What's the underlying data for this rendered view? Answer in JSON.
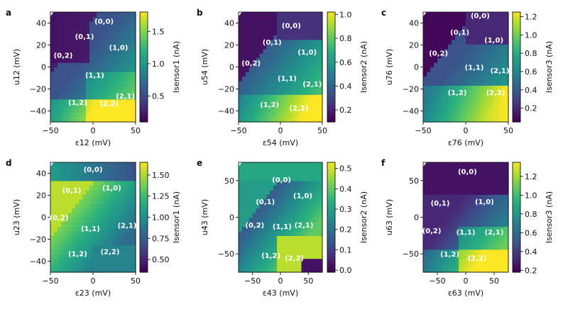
{
  "colors": {
    "low": "#3b1f8f",
    "mid_low": "#2c5fb5",
    "mid": "#1f9a8a",
    "mid_high": "#5ec962",
    "high": "#f0f01a",
    "axis": "#111111",
    "background": "#ffffff"
  },
  "chart_data": [
    {
      "panel": "a",
      "type": "heatmap",
      "xlabel": "ε12 (mV)",
      "ylabel": "u12 (mV)",
      "xlim": [
        -50,
        50
      ],
      "ylim": [
        -50,
        50
      ],
      "xticks": [
        -50,
        0,
        50
      ],
      "yticks": [
        -40,
        -20,
        0,
        20,
        40
      ],
      "colorbar": {
        "label": "Isensor1 (nA)",
        "range": [
          0.1,
          1.8
        ],
        "ticks": [
          0.5,
          1.0,
          1.5
        ],
        "tick_labels": [
          "0.5",
          "1.0",
          "1.5"
        ]
      },
      "regions": [
        {
          "label": "(0,0)",
          "x": 13,
          "y": 42
        },
        {
          "label": "(0,1)",
          "x": -10,
          "y": 28
        },
        {
          "label": "(1,0)",
          "x": 30,
          "y": 18
        },
        {
          "label": "(0,2)",
          "x": -35,
          "y": 11
        },
        {
          "label": "(1,1)",
          "x": 2,
          "y": -7
        },
        {
          "label": "(2,1)",
          "x": 38,
          "y": -26
        },
        {
          "label": "(1,2)",
          "x": -18,
          "y": -32
        },
        {
          "label": "(2,2)",
          "x": 19,
          "y": -33
        }
      ]
    },
    {
      "panel": "b",
      "type": "heatmap",
      "xlabel": "ε54 (mV)",
      "ylabel": "u54 (mV)",
      "xlim": [
        -50,
        50
      ],
      "ylim": [
        -50,
        50
      ],
      "xticks": [
        -50,
        0,
        50
      ],
      "yticks": [
        -40,
        -20,
        0,
        20,
        40
      ],
      "colorbar": {
        "label": "Isensor2 (nA)",
        "range": [
          0.1,
          1.02
        ],
        "ticks": [
          0.2,
          0.4,
          0.6,
          0.8,
          1.0
        ],
        "tick_labels": [
          "0.2",
          "0.4",
          "0.6",
          "0.8",
          "1.0"
        ]
      },
      "regions": [
        {
          "label": "(0,0)",
          "x": 13,
          "y": 38
        },
        {
          "label": "(0,1)",
          "x": -10,
          "y": 23
        },
        {
          "label": "(1,0)",
          "x": 32,
          "y": 14
        },
        {
          "label": "(0,2)",
          "x": -35,
          "y": 4
        },
        {
          "label": "(1,1)",
          "x": 8,
          "y": -10
        },
        {
          "label": "(2,1)",
          "x": 38,
          "y": -15
        },
        {
          "label": "(1,2)",
          "x": -13,
          "y": -34
        },
        {
          "label": "(2,2)",
          "x": 22,
          "y": -37
        }
      ]
    },
    {
      "panel": "c",
      "type": "heatmap",
      "xlabel": "ε76 (mV)",
      "ylabel": "u76 (mV)",
      "xlim": [
        -50,
        50
      ],
      "ylim": [
        -50,
        50
      ],
      "xticks": [
        -50,
        0,
        50
      ],
      "yticks": [
        -40,
        -20,
        0,
        20,
        40
      ],
      "colorbar": {
        "label": "Isensor3 (nA)",
        "range": [
          0.05,
          1.25
        ],
        "ticks": [
          0.2,
          0.4,
          0.6,
          0.8,
          1.0,
          1.2
        ],
        "tick_labels": [
          "0.2",
          "0.4",
          "0.6",
          "0.8",
          "1.0",
          "1.2"
        ]
      },
      "regions": [
        {
          "label": "(0,0)",
          "x": 17,
          "y": 47
        },
        {
          "label": "(0,1)",
          "x": -7,
          "y": 32
        },
        {
          "label": "(1,0)",
          "x": 33,
          "y": 25
        },
        {
          "label": "(0,2)",
          "x": -32,
          "y": 13
        },
        {
          "label": "(1,1)",
          "x": 10,
          "y": 0
        },
        {
          "label": "(2,1)",
          "x": 40,
          "y": -3
        },
        {
          "label": "(1,2)",
          "x": -10,
          "y": -23
        },
        {
          "label": "(2,2)",
          "x": 35,
          "y": -23
        }
      ]
    },
    {
      "panel": "d",
      "type": "heatmap",
      "xlabel": "ε23 (mV)",
      "ylabel": "u23 (mV)",
      "xlim": [
        -50,
        50
      ],
      "ylim": [
        -50,
        50
      ],
      "xticks": [
        -50,
        0,
        50
      ],
      "yticks": [
        -40,
        -20,
        0,
        20,
        40
      ],
      "colorbar": {
        "label": "Isensor1 (nA)",
        "range": [
          0.35,
          1.65
        ],
        "ticks": [
          0.5,
          0.75,
          1.0,
          1.25,
          1.5
        ],
        "tick_labels": [
          "0.50",
          "0.75",
          "1.00",
          "1.25",
          "1.50"
        ]
      },
      "regions": [
        {
          "label": "(0,0)",
          "x": 0,
          "y": 44
        },
        {
          "label": "(0,1)",
          "x": -25,
          "y": 25
        },
        {
          "label": "(1,0)",
          "x": 22,
          "y": 27
        },
        {
          "label": "(0,2)",
          "x": -40,
          "y": 0
        },
        {
          "label": "(1,1)",
          "x": -3,
          "y": -10
        },
        {
          "label": "(2,1)",
          "x": 40,
          "y": -7
        },
        {
          "label": "(1,2)",
          "x": -18,
          "y": -33
        },
        {
          "label": "(2,2)",
          "x": 20,
          "y": -31
        }
      ]
    },
    {
      "panel": "e",
      "type": "heatmap",
      "xlabel": "ε43 (mV)",
      "ylabel": "u43 (mV)",
      "xlim": [
        -75,
        75
      ],
      "ylim": [
        -75,
        75
      ],
      "xticks": [
        -50,
        0,
        50
      ],
      "yticks": [
        -50,
        0,
        50
      ],
      "colorbar": {
        "label": "Isensor2 (nA)",
        "range": [
          -0.01,
          0.53
        ],
        "ticks": [
          0.0,
          0.1,
          0.2,
          0.3,
          0.4,
          0.5
        ],
        "tick_labels": [
          "0.0",
          "0.1",
          "0.2",
          "0.3",
          "0.4",
          "0.5"
        ]
      },
      "regions": [
        {
          "label": "(0,0)",
          "x": 2,
          "y": 52
        },
        {
          "label": "(0,1)",
          "x": -27,
          "y": 22
        },
        {
          "label": "(1,0)",
          "x": 40,
          "y": 30
        },
        {
          "label": "(0,2)",
          "x": -46,
          "y": -10
        },
        {
          "label": "(1,1)",
          "x": 3,
          "y": -12
        },
        {
          "label": "(2,1)",
          "x": 42,
          "y": -10
        },
        {
          "label": "(1,2)",
          "x": -17,
          "y": -52
        },
        {
          "label": "(2,2)",
          "x": 25,
          "y": -55
        }
      ]
    },
    {
      "panel": "f",
      "type": "heatmap",
      "xlabel": "ε63 (mV)",
      "ylabel": "u63 (mV)",
      "xlim": [
        -75,
        75
      ],
      "ylim": [
        -75,
        75
      ],
      "xticks": [
        -50,
        0,
        50
      ],
      "yticks": [
        -50,
        0,
        50
      ],
      "colorbar": {
        "label": "Isensor3 (nA)",
        "range": [
          0.18,
          1.35
        ],
        "ticks": [
          0.2,
          0.4,
          0.6,
          0.8,
          1.0,
          1.2
        ],
        "tick_labels": [
          "0.2",
          "0.4",
          "0.6",
          "0.8",
          "1.0",
          "1.2"
        ]
      },
      "regions": [
        {
          "label": "(0,0)",
          "x": 3,
          "y": 63
        },
        {
          "label": "(0,1)",
          "x": -45,
          "y": 20
        },
        {
          "label": "(1,0)",
          "x": 33,
          "y": 22
        },
        {
          "label": "(0,2)",
          "x": -60,
          "y": -18
        },
        {
          "label": "(1,1)",
          "x": 0,
          "y": -20
        },
        {
          "label": "(2,1)",
          "x": 50,
          "y": -20
        },
        {
          "label": "(1,2)",
          "x": -28,
          "y": -50
        },
        {
          "label": "(2,2)",
          "x": 20,
          "y": -55
        }
      ]
    }
  ]
}
